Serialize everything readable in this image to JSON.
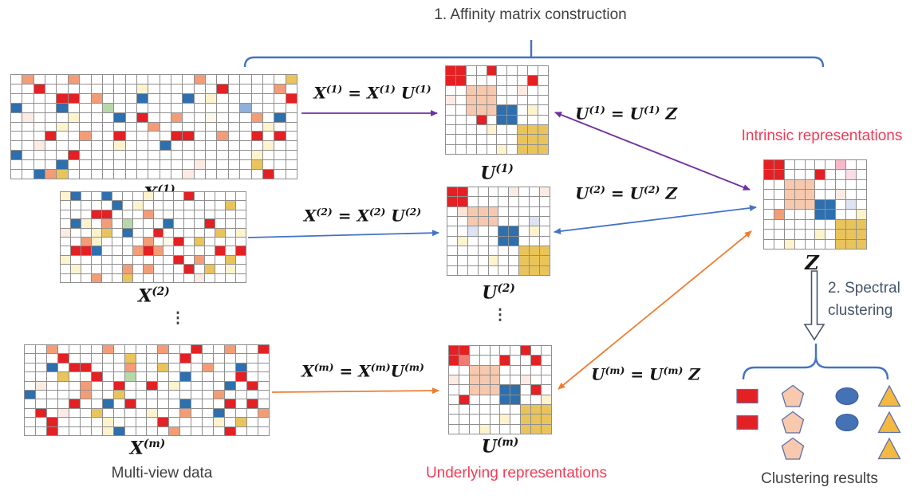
{
  "colors": {
    "accent_blue": "#4472c4",
    "purple": "#7030a0",
    "orange": "#ed7d31",
    "label_red": "#f43b55",
    "caption": "#3f3f3f",
    "slate": "#44546a",
    "grid_line": "#8f8f8f",
    "arrow_fill_white": "#ffffff"
  },
  "header": {
    "step1": "1. Affinity matrix construction",
    "step2": "2. Spectral clustering"
  },
  "captions": {
    "multiview": "Multi-view data",
    "underlying": "Underlying representations",
    "intrinsic": "Intrinsic representations",
    "results": "Clustering results",
    "ellipsis": "⋮"
  },
  "equations": {
    "x1": "X^(1) = X^(1) U^(1)",
    "x2": "X^(2) = X^(2) U^(2)",
    "xm": "X^(m) = X^(m)U^(m)",
    "u1": "U^(1) = U^(1) Z",
    "u2": "U^(2) = U^(2) Z",
    "um": "U^(m) = U^(m) Z"
  },
  "matrix_labels": {
    "x1": "X^(1)",
    "x2": "X^(2)",
    "xm": "X^(m)",
    "u1": "U^(1)",
    "u2": "U^(2)",
    "um": "U^(m)",
    "z": "Z"
  },
  "matrix_colors": {
    ".": "#ffffff",
    "R": "#e32124",
    "r": "#ef7b72",
    "O": "#f29d77",
    "S": "#f6c9ae",
    "T": "#fbe4d6",
    "p": "#fcebe4",
    "P": "#f5b9c8",
    "K": "#fbdce4",
    "B": "#2e6fae",
    "b": "#8fafdc",
    "L": "#dde3f3",
    "Y": "#e9c45c",
    "y": "#fdf3cd",
    "G": "#b7d8a8",
    "W": "#fdf8e8"
  },
  "matrices": {
    "x1": {
      "cols": 25,
      "rows": [
        ".O...O..........O.......Y",
        "..R........y......R....O.",
        "....RR.O...B...B.y......R",
        "B...B...G...........b....",
        ".p...y...B.R..O..W...O.B.",
        "....y.......O.........y..",
        "...R..O..R....RR..O..R.R.",
        "..p......y...B........y..",
        "B....R...............y...",
        "....B...........p....Y...",
        "..BOY..........p......R.."
      ]
    },
    "x2": {
      "cols": 18,
      "rows": [
        "yB..B...y...R.....",
        ".....B.y........Y.",
        "...RR...O.........",
        ".By.O.G...B...R...",
        "p..yY.B..R.....Y.y",
        "..Oy....O.WR.Y....",
        ".RRB...ORO.....R.R",
        "y..........R.O..Y.",
        ".y....O.O...R.Y.y.",
        "...O..Y......p...."
      ]
    },
    "xm": {
      "cols": 22,
      "rows": [
        "..O....O....O..R..O..R",
        "...R.....Y....R.......",
        "..B.RR...O..Y...O..B..",
        "...Y..R..G....B....R..",
        ".p...O..R..R.y....B.R.",
        "B....O..Y........O....",
        "....R..B.R....B...R.R.",
        ".R.p..Y....y..O..B...O",
        "..R....y....R....y.Y..",
        "..R....yB....O....R..."
      ]
    },
    "u1": {
      "cols": 10,
      "rows": [
        "RR..R.....",
        "RR......R.",
        "..SSS..p..",
        "p.SSS.....",
        "..SSSBB.y.",
        "...R.BB...",
        "....y..YYY",
        ".......YYY",
        ".....y.YYY"
      ]
    },
    "u2": {
      "cols": 10,
      "rows": [
        "RR....p..p",
        "RR........",
        ".TSSS.....",
        "..SSS...L.",
        "..L..BB.y.",
        ".y...BB...",
        ".......YYY",
        "....y..YYY",
        ".......YYY"
      ]
    },
    "um": {
      "cols": 10,
      "rows": [
        "RR.....R..",
        "Rr...R..R.",
        "..SSS.....",
        "p.SSS..p..",
        "..SSSBB.R.",
        ".R...BB..y",
        ".......YYY",
        ".....y.YYY",
        "...y...YYY"
      ]
    },
    "z": {
      "cols": 10,
      "rows": [
        "RR.....P..",
        "RR...R..K.",
        "..SSS.....",
        "..SSS..p..",
        "..SSSBB.L.",
        ".O...BB..y",
        ".......YYY",
        ".....y.YYY",
        "..y....YYY"
      ]
    }
  },
  "results": {
    "groups": [
      {
        "shape": "rectangle",
        "fill": "#e32124",
        "stroke": "#5a6fa8",
        "count": 2
      },
      {
        "shape": "pentagon",
        "fill": "#f8c9ad",
        "stroke": "#5a6fa8",
        "count": 3
      },
      {
        "shape": "ellipse",
        "fill": "#4472b4",
        "stroke": "#365a9e",
        "count": 2
      },
      {
        "shape": "triangle",
        "fill": "#f3b942",
        "stroke": "#5a6fa8",
        "count": 3
      }
    ]
  }
}
